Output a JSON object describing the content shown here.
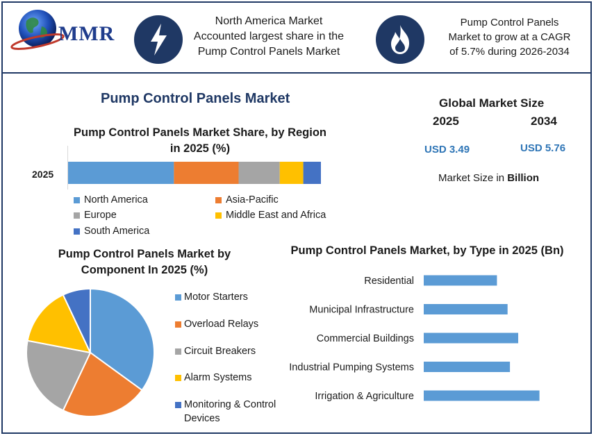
{
  "header": {
    "logo_text": "MMR",
    "box1_line1": "North America Market",
    "box1_line2": "Accounted largest share in the",
    "box1_line3": "Pump Control Panels Market",
    "box2_line1": "Pump Control Panels",
    "box2_line2": "Market to grow at a CAGR",
    "box2_line3": "of  5.7% during 2026-2034"
  },
  "main_title": "Pump Control Panels Market",
  "market_size": {
    "title": "Global Market Size",
    "year1": "2025",
    "year2": "2034",
    "value1": "USD  3.49",
    "value2": "USD 5.76",
    "note_prefix": "Market Size in ",
    "note_bold": "Billion"
  },
  "colors": {
    "north_america": "#5b9bd5",
    "asia_pacific": "#ed7d31",
    "europe": "#a5a5a5",
    "mea": "#ffc000",
    "south_america": "#4472c4",
    "frame": "#1f3864"
  },
  "chart_data": [
    {
      "type": "bar",
      "orientation": "horizontal-stacked",
      "title_line1": "Pump Control Panels Market Share, by Region",
      "title_line2": "in 2025 (%)",
      "categories": [
        "2025"
      ],
      "series": [
        {
          "name": "North America",
          "values": [
            36
          ]
        },
        {
          "name": "Asia-Pacific",
          "values": [
            22
          ]
        },
        {
          "name": "Europe",
          "values": [
            14
          ]
        },
        {
          "name": "Middle East and Africa",
          "values": [
            8
          ]
        },
        {
          "name": "South America",
          "values": [
            6
          ]
        }
      ],
      "legend_position": "bottom"
    },
    {
      "type": "pie",
      "title_line1": "Pump Control Panels Market by",
      "title_line2": "Component In 2025 (%)",
      "labels": [
        "Motor Starters",
        "Overload Relays",
        "Circuit Breakers",
        "Alarm Systems",
        "Monitoring & Control Devices"
      ],
      "label_lines": [
        [
          "Motor Starters"
        ],
        [
          "Overload Relays"
        ],
        [
          "Circuit Breakers"
        ],
        [
          "Alarm Systems"
        ],
        [
          "Monitoring & Control",
          "Devices"
        ]
      ],
      "values": [
        35,
        22,
        21,
        15,
        7
      ],
      "legend_position": "right"
    },
    {
      "type": "bar",
      "orientation": "horizontal",
      "title": "Pump Control Panels Market, by Type in 2025 (Bn)",
      "categories": [
        "Residential",
        "Municipal Infrastructure",
        "Commercial Buildings",
        "Industrial Pumping Systems",
        "Irrigation & Agriculture"
      ],
      "values": [
        0.62,
        0.71,
        0.8,
        0.73,
        0.98
      ],
      "color": "#5b9bd5"
    }
  ]
}
